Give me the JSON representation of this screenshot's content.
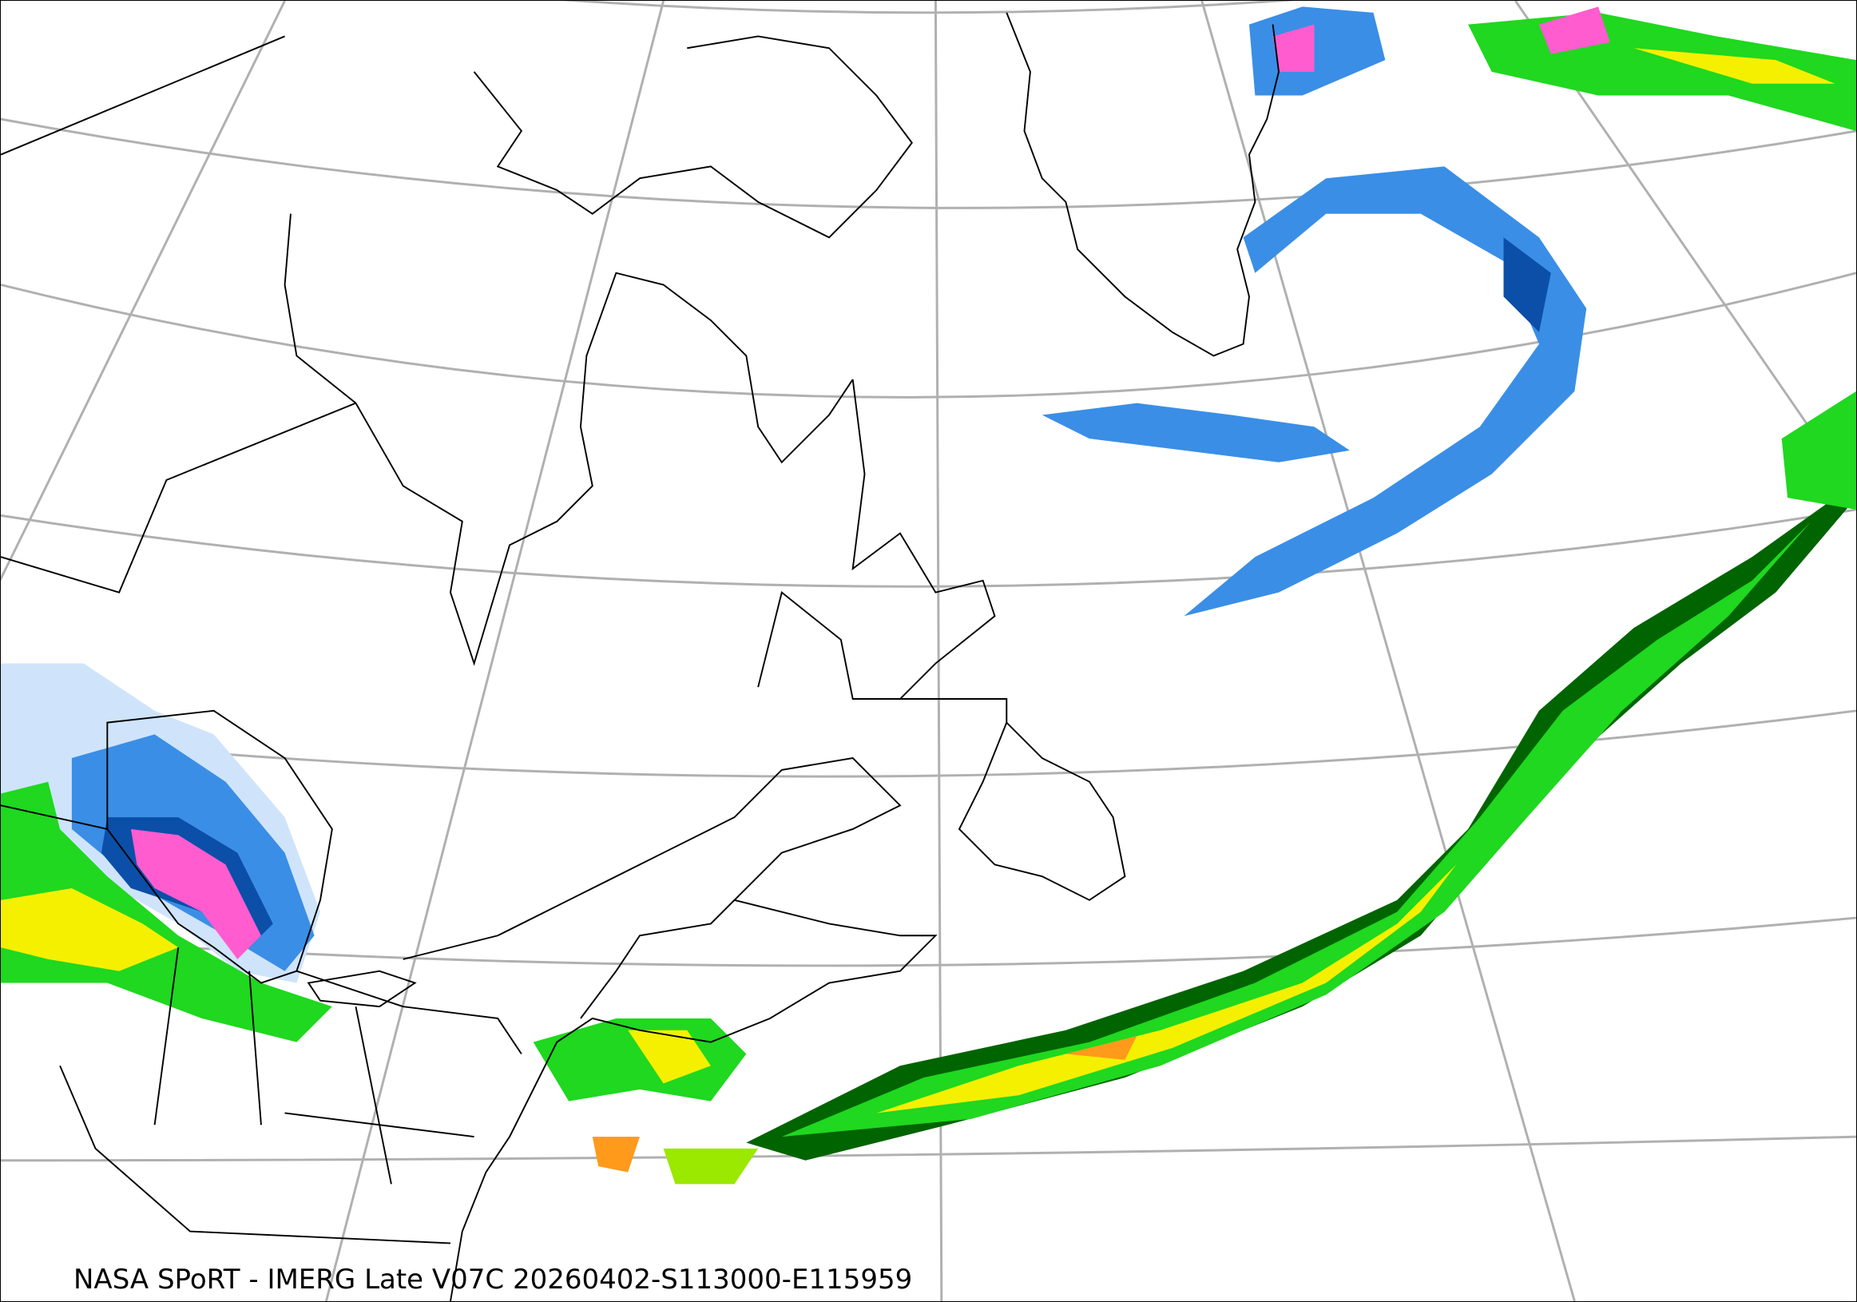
{
  "map": {
    "projection": "polar-conic",
    "region": "Northeastern North America and North Atlantic",
    "basemap": "coastlines, country and state borders, lat/lon graticule",
    "graticule_color": "#b0b0b0",
    "coastline_color": "#000000"
  },
  "caption": "NASA SPoRT - IMERG Late V07C 20260402-S113000-E115959",
  "precip_colors": {
    "light_blue": "#cfe4fb",
    "blue": "#3a8ee6",
    "dark_blue": "#0b4fa8",
    "pink": "#ff5ccf",
    "dark_green": "#006400",
    "green": "#1fd81f",
    "light_green": "#9be800",
    "yellow": "#f5f000",
    "orange": "#ff9a1a"
  }
}
